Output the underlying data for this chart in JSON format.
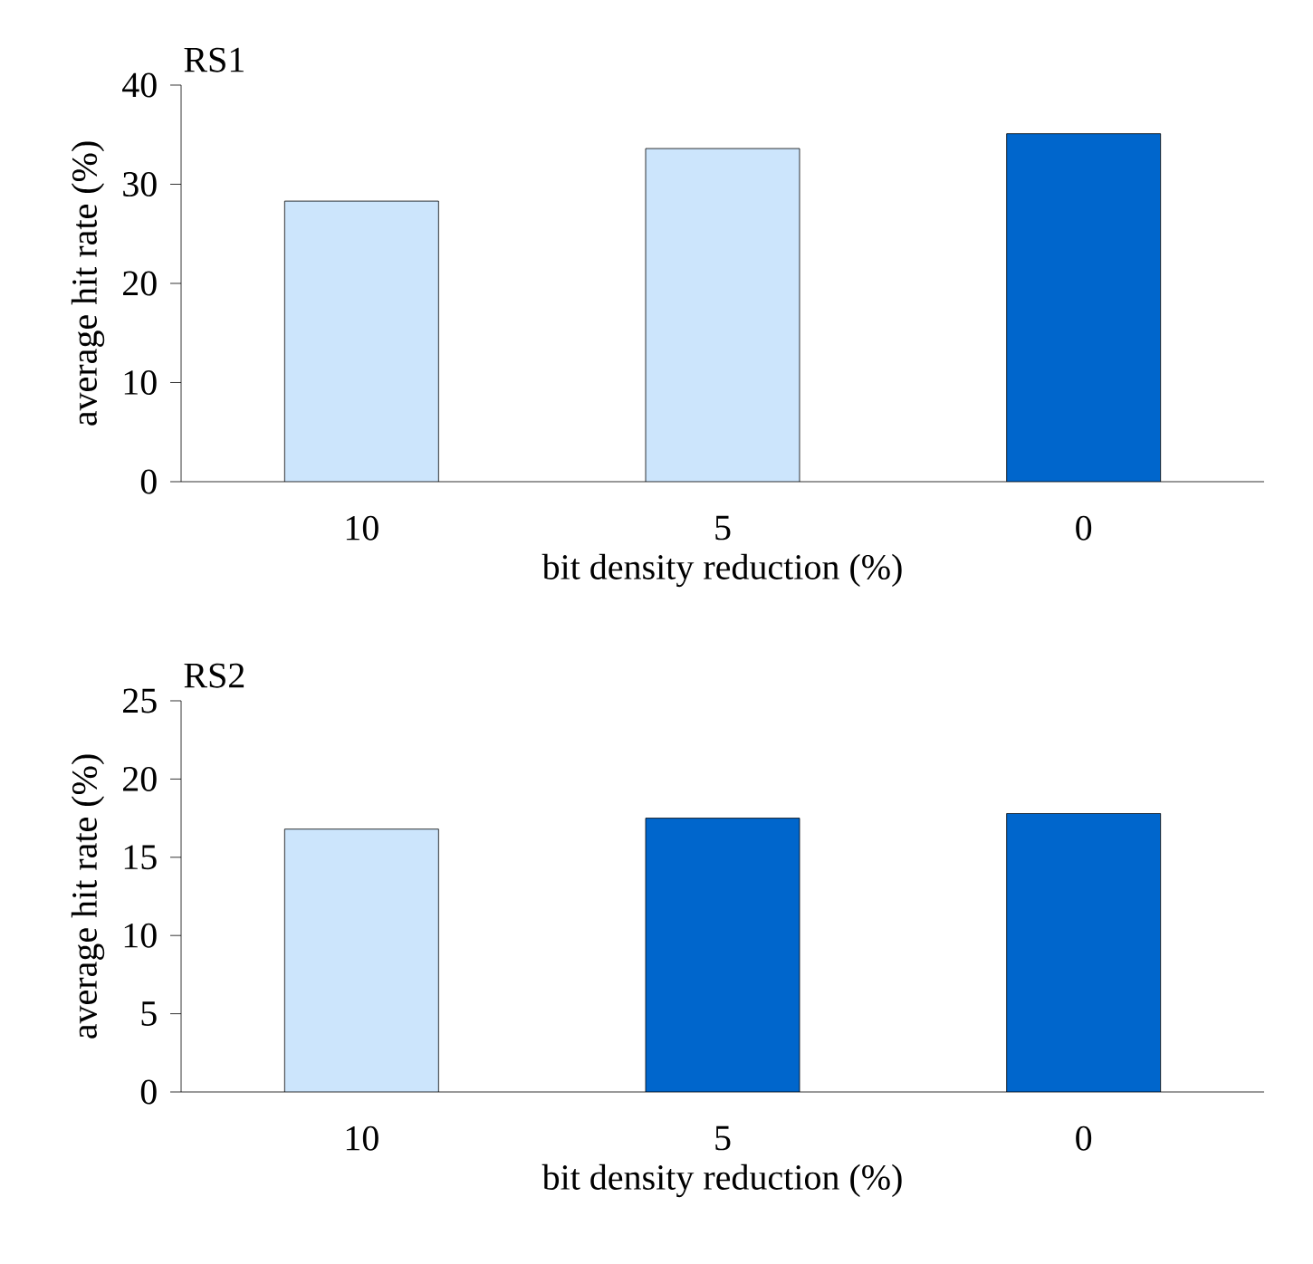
{
  "chart_data": [
    {
      "type": "bar",
      "title": "RS1",
      "xlabel": "bit density reduction (%)",
      "ylabel": "average hit rate (%)",
      "categories": [
        "10",
        "5",
        "0"
      ],
      "values": [
        28.3,
        33.6,
        35.1
      ],
      "colors": [
        "#cce5fc",
        "#cce5fc",
        "#0066cc"
      ],
      "ylim": [
        0,
        40
      ],
      "yticks": [
        0,
        10,
        20,
        30,
        40
      ]
    },
    {
      "type": "bar",
      "title": "RS2",
      "xlabel": "bit density reduction (%)",
      "ylabel": "average hit rate (%)",
      "categories": [
        "10",
        "5",
        "0"
      ],
      "values": [
        16.8,
        17.5,
        17.8
      ],
      "colors": [
        "#cce5fc",
        "#0066cc",
        "#0066cc"
      ],
      "ylim": [
        0,
        25
      ],
      "yticks": [
        0,
        5,
        10,
        15,
        20,
        25
      ]
    }
  ]
}
